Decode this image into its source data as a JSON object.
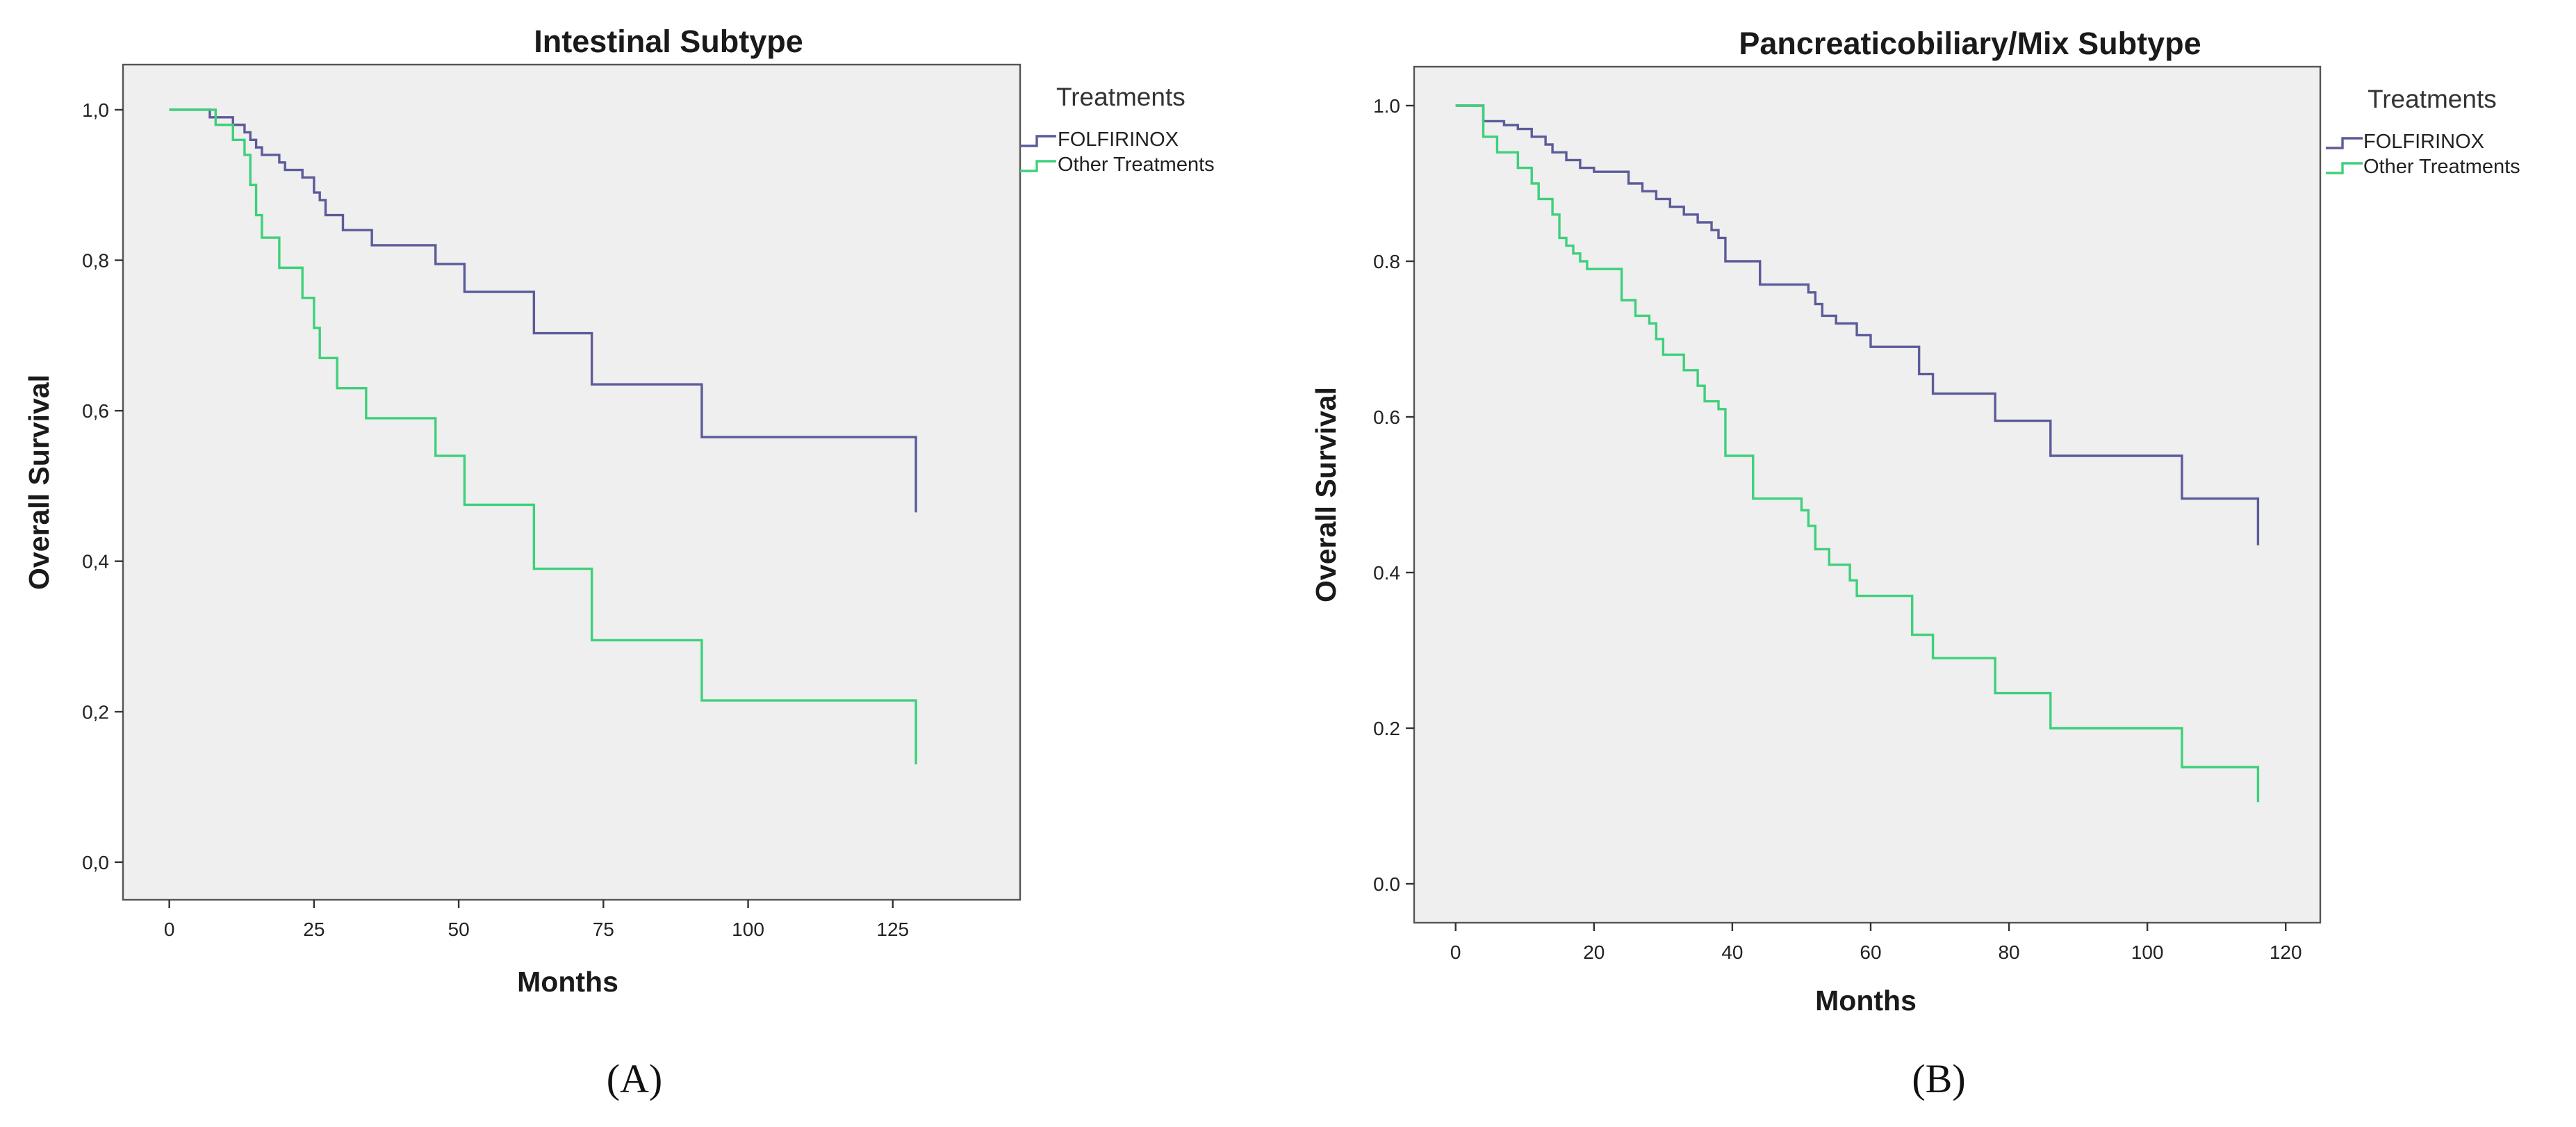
{
  "chart_data": [
    {
      "type": "line",
      "panel_label": "(A)",
      "title": "Intestinal Subtype",
      "xlabel": "Months",
      "ylabel": "Overall Survival",
      "xlim": [
        -8,
        147
      ],
      "ylim": [
        -0.05,
        1.06
      ],
      "xticks": [
        {
          "value": 0,
          "label": "0"
        },
        {
          "value": 25,
          "label": "25"
        },
        {
          "value": 50,
          "label": "50"
        },
        {
          "value": 75,
          "label": "75"
        },
        {
          "value": 100,
          "label": "100"
        },
        {
          "value": 125,
          "label": "125"
        }
      ],
      "yticks": [
        {
          "value": 0,
          "label": "0,0"
        },
        {
          "value": 0.2,
          "label": "0,2"
        },
        {
          "value": 0.4,
          "label": "0,4"
        },
        {
          "value": 0.6,
          "label": "0,6"
        },
        {
          "value": 0.8,
          "label": "0,8"
        },
        {
          "value": 1.0,
          "label": "1,0"
        }
      ],
      "legend": {
        "title": "Treatments",
        "position": "right"
      },
      "series": [
        {
          "name": "FOLFIRINOX",
          "color": "#5b5b9b",
          "points": [
            [
              0,
              1.0
            ],
            [
              7,
              0.99
            ],
            [
              11,
              0.98
            ],
            [
              13,
              0.97
            ],
            [
              14,
              0.96
            ],
            [
              15,
              0.95
            ],
            [
              16,
              0.94
            ],
            [
              19,
              0.93
            ],
            [
              20,
              0.92
            ],
            [
              23,
              0.91
            ],
            [
              25,
              0.89
            ],
            [
              26,
              0.88
            ],
            [
              27,
              0.86
            ],
            [
              30,
              0.84
            ],
            [
              35,
              0.82
            ],
            [
              46,
              0.795
            ],
            [
              51,
              0.758
            ],
            [
              63,
              0.703
            ],
            [
              73,
              0.635
            ],
            [
              92,
              0.565
            ],
            [
              129,
              0.565
            ],
            [
              129,
              0.465
            ]
          ]
        },
        {
          "name": "Other Treatments",
          "color": "#3ed07a",
          "points": [
            [
              0,
              1.0
            ],
            [
              8,
              0.98
            ],
            [
              11,
              0.96
            ],
            [
              13,
              0.94
            ],
            [
              14,
              0.9
            ],
            [
              15,
              0.86
            ],
            [
              16,
              0.83
            ],
            [
              19,
              0.79
            ],
            [
              23,
              0.75
            ],
            [
              25,
              0.71
            ],
            [
              26,
              0.67
            ],
            [
              29,
              0.63
            ],
            [
              34,
              0.59
            ],
            [
              46,
              0.54
            ],
            [
              51,
              0.475
            ],
            [
              63,
              0.39
            ],
            [
              73,
              0.295
            ],
            [
              92,
              0.215
            ],
            [
              129,
              0.215
            ],
            [
              129,
              0.13
            ]
          ]
        }
      ]
    },
    {
      "type": "line",
      "panel_label": "(B)",
      "title": "Pancreaticobiliary/Mix Subtype",
      "xlabel": "Months",
      "ylabel": "Overall Survival",
      "xlim": [
        -6,
        125
      ],
      "ylim": [
        -0.05,
        1.05
      ],
      "xticks": [
        {
          "value": 0,
          "label": "0"
        },
        {
          "value": 20,
          "label": "20"
        },
        {
          "value": 40,
          "label": "40"
        },
        {
          "value": 60,
          "label": "60"
        },
        {
          "value": 80,
          "label": "80"
        },
        {
          "value": 100,
          "label": "100"
        },
        {
          "value": 120,
          "label": "120"
        }
      ],
      "yticks": [
        {
          "value": 0,
          "label": "0.0"
        },
        {
          "value": 0.2,
          "label": "0.2"
        },
        {
          "value": 0.4,
          "label": "0.4"
        },
        {
          "value": 0.6,
          "label": "0.6"
        },
        {
          "value": 0.8,
          "label": "0.8"
        },
        {
          "value": 1.0,
          "label": "1.0"
        }
      ],
      "legend": {
        "title": "Treatments",
        "position": "right"
      },
      "series": [
        {
          "name": "FOLFIRINOX",
          "color": "#5b5b9b",
          "points": [
            [
              0,
              1.0
            ],
            [
              4,
              0.98
            ],
            [
              7,
              0.975
            ],
            [
              9,
              0.97
            ],
            [
              11,
              0.96
            ],
            [
              13,
              0.95
            ],
            [
              14,
              0.94
            ],
            [
              16,
              0.93
            ],
            [
              18,
              0.92
            ],
            [
              20,
              0.915
            ],
            [
              25,
              0.9
            ],
            [
              27,
              0.89
            ],
            [
              29,
              0.88
            ],
            [
              31,
              0.87
            ],
            [
              33,
              0.86
            ],
            [
              35,
              0.85
            ],
            [
              37,
              0.84
            ],
            [
              38,
              0.83
            ],
            [
              39,
              0.8
            ],
            [
              44,
              0.77
            ],
            [
              51,
              0.76
            ],
            [
              52,
              0.745
            ],
            [
              53,
              0.73
            ],
            [
              55,
              0.72
            ],
            [
              58,
              0.705
            ],
            [
              60,
              0.69
            ],
            [
              67,
              0.655
            ],
            [
              69,
              0.63
            ],
            [
              78,
              0.595
            ],
            [
              86,
              0.55
            ],
            [
              105,
              0.495
            ],
            [
              116,
              0.495
            ],
            [
              116,
              0.435
            ]
          ]
        },
        {
          "name": "Other Treatments",
          "color": "#3ed07a",
          "points": [
            [
              0,
              1.0
            ],
            [
              4,
              0.96
            ],
            [
              6,
              0.94
            ],
            [
              9,
              0.92
            ],
            [
              11,
              0.9
            ],
            [
              12,
              0.88
            ],
            [
              14,
              0.86
            ],
            [
              15,
              0.83
            ],
            [
              16,
              0.82
            ],
            [
              17,
              0.81
            ],
            [
              18,
              0.8
            ],
            [
              19,
              0.79
            ],
            [
              24,
              0.75
            ],
            [
              26,
              0.73
            ],
            [
              28,
              0.72
            ],
            [
              29,
              0.7
            ],
            [
              30,
              0.68
            ],
            [
              33,
              0.66
            ],
            [
              35,
              0.64
            ],
            [
              36,
              0.62
            ],
            [
              38,
              0.61
            ],
            [
              39,
              0.55
            ],
            [
              43,
              0.495
            ],
            [
              50,
              0.48
            ],
            [
              51,
              0.46
            ],
            [
              52,
              0.43
            ],
            [
              54,
              0.41
            ],
            [
              57,
              0.39
            ],
            [
              58,
              0.37
            ],
            [
              66,
              0.32
            ],
            [
              69,
              0.29
            ],
            [
              78,
              0.245
            ],
            [
              86,
              0.2
            ],
            [
              105,
              0.15
            ],
            [
              116,
              0.15
            ],
            [
              116,
              0.105
            ]
          ]
        }
      ]
    }
  ]
}
